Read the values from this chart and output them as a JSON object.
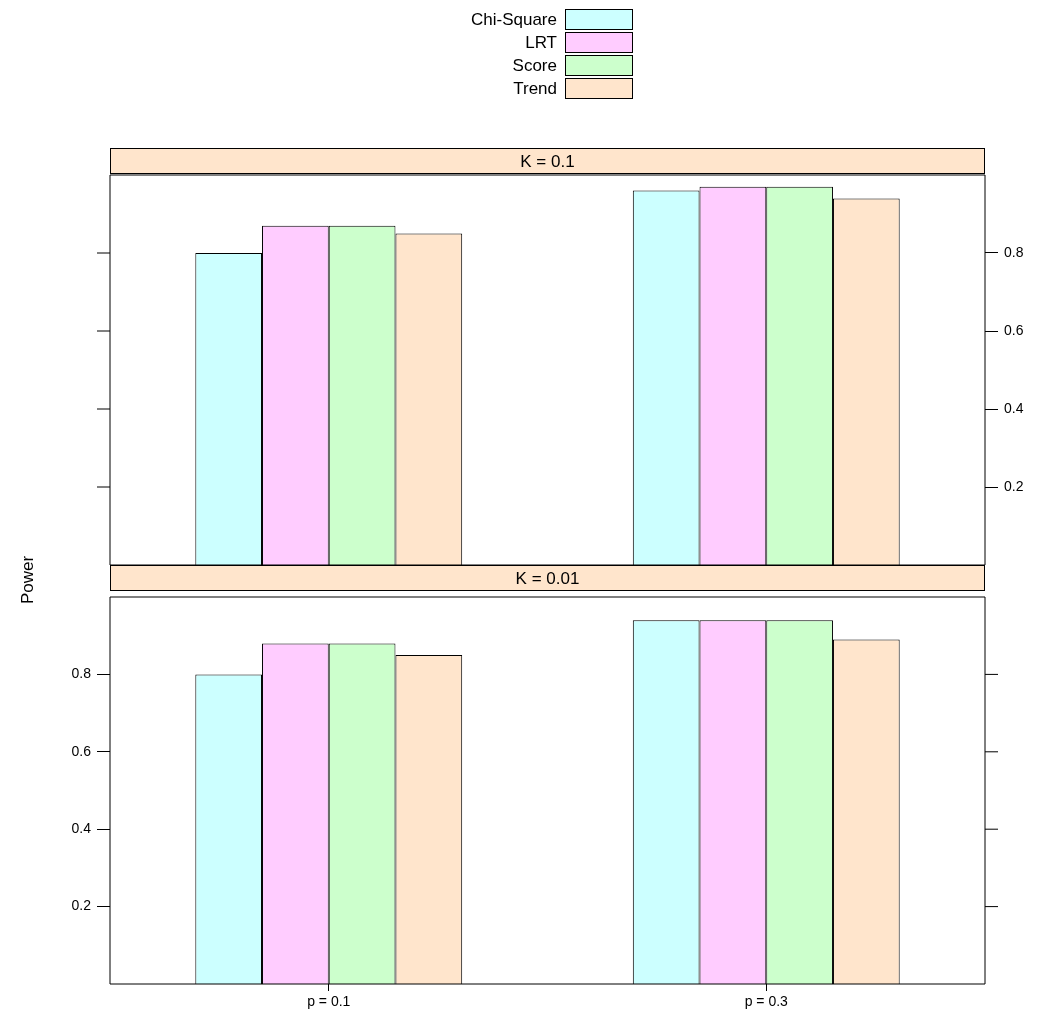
{
  "chart_data": [
    {
      "type": "bar",
      "title": "K = 0.1",
      "categories": [
        null,
        null
      ],
      "legend": "top",
      "tick_labels": "y",
      "ylim": [
        0,
        1
      ],
      "yticks": [
        0.2,
        0.4,
        0.6,
        0.8
      ],
      "series": [
        {
          "name": "Chi-Square",
          "color": "#ccffff",
          "values": [
            0.8,
            0.96
          ]
        },
        {
          "name": "LRT",
          "color": "#ffccff",
          "values": [
            0.87,
            0.97
          ]
        },
        {
          "name": "Score",
          "color": "#ccffcc",
          "values": [
            0.87,
            0.97
          ]
        },
        {
          "name": "Trend",
          "color": "#ffe5cc",
          "values": [
            0.85,
            0.94
          ]
        }
      ]
    },
    {
      "type": "bar",
      "title": "K = 0.01",
      "ylabel": "Power",
      "categories": [
        "p = 0.1",
        "p = 0.3"
      ],
      "ylim": [
        0,
        1
      ],
      "yticks": [
        0.2,
        0.4,
        0.6,
        0.8
      ],
      "series": [
        {
          "color": "#ccffff",
          "values": [
            0.8,
            0.94
          ]
        },
        {
          "color": "#ffccff",
          "values": [
            0.88,
            0.94
          ]
        },
        {
          "color": "#ccffcc",
          "values": [
            0.88,
            0.94
          ]
        },
        {
          "color": "#ffe5cc",
          "values": [
            0.85,
            0.89
          ]
        }
      ]
    }
  ]
}
